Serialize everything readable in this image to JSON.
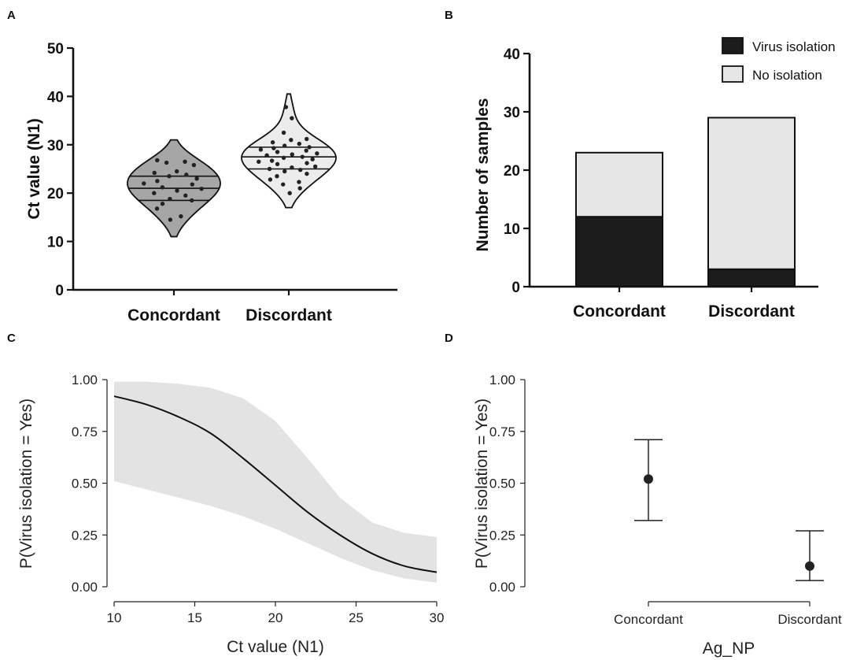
{
  "panels": {
    "a": "A",
    "b": "B",
    "c": "C",
    "d": "D"
  },
  "chart_data": [
    {
      "panel": "A",
      "type": "violin",
      "title": "",
      "xlabel": "",
      "ylabel": "Ct value (N1)",
      "ylim": [
        0,
        50
      ],
      "yticks": [
        0,
        10,
        20,
        30,
        40,
        50
      ],
      "categories": [
        "Concordant",
        "Discordant"
      ],
      "quartiles": [
        {
          "q1": 18.5,
          "median": 21,
          "q3": 23.5
        },
        {
          "q1": 25,
          "median": 27.5,
          "q3": 29.5
        }
      ],
      "range": [
        {
          "min": 11,
          "max": 31
        },
        {
          "min": 17,
          "max": 40.5
        }
      ],
      "points": [
        [
          26.8,
          26.5,
          26.3,
          25.8,
          24.5,
          24.2,
          23.8,
          23.5,
          23.0,
          22.5,
          22.0,
          21.8,
          21.2,
          20.9,
          20.5,
          20.0,
          19.5,
          18.8,
          18.5,
          17.8,
          16.8,
          15.2,
          14.5
        ],
        [
          37.8,
          35.5,
          32.5,
          31.2,
          31.0,
          30.5,
          30.2,
          29.8,
          29.5,
          29.3,
          29.0,
          28.8,
          28.5,
          28.2,
          28.0,
          27.8,
          27.5,
          27.3,
          27.0,
          26.7,
          26.5,
          26.2,
          26.0,
          25.5,
          25.3,
          25.0,
          24.8,
          24.5,
          24.0,
          23.5,
          22.8,
          22.3,
          21.8,
          21.0,
          20.0
        ]
      ]
    },
    {
      "panel": "B",
      "type": "stacked-bar",
      "title": "",
      "xlabel": "",
      "ylabel": "Number of samples",
      "ylim": [
        0,
        40
      ],
      "yticks": [
        0,
        10,
        20,
        30,
        40
      ],
      "categories": [
        "Concordant",
        "Discordant"
      ],
      "series": [
        {
          "name": "Virus isolation",
          "values": [
            12,
            3
          ],
          "color": "#1c1c1c"
        },
        {
          "name": "No isolation",
          "values": [
            11,
            26
          ],
          "color": "#e6e6e6"
        }
      ],
      "legend": "top-right"
    },
    {
      "panel": "C",
      "type": "line",
      "title": "",
      "xlabel": "Ct value (N1)",
      "ylabel": "P(Virus isolation = Yes)",
      "xlim": [
        10,
        30
      ],
      "ylim": [
        0,
        1
      ],
      "xticks": [
        10,
        15,
        20,
        25,
        30
      ],
      "yticks": [
        0.0,
        0.25,
        0.5,
        0.75,
        1.0
      ],
      "ytick_labels": [
        "0.00",
        "0.25",
        "0.50",
        "0.75",
        "1.00"
      ],
      "x": [
        10,
        12,
        14,
        16,
        18,
        20,
        22,
        24,
        26,
        28,
        30
      ],
      "y": [
        0.92,
        0.88,
        0.82,
        0.74,
        0.62,
        0.49,
        0.36,
        0.25,
        0.16,
        0.1,
        0.07
      ],
      "ci_lower": [
        0.51,
        0.47,
        0.43,
        0.39,
        0.34,
        0.28,
        0.21,
        0.14,
        0.08,
        0.04,
        0.02
      ],
      "ci_upper": [
        0.99,
        0.99,
        0.98,
        0.96,
        0.91,
        0.8,
        0.62,
        0.43,
        0.31,
        0.26,
        0.24
      ]
    },
    {
      "panel": "D",
      "type": "errorbar",
      "title": "",
      "xlabel": "Ag_NP",
      "ylabel": "P(Virus isolation = Yes)",
      "ylim": [
        0,
        1
      ],
      "yticks": [
        0.0,
        0.25,
        0.5,
        0.75,
        1.0
      ],
      "ytick_labels": [
        "0.00",
        "0.25",
        "0.50",
        "0.75",
        "1.00"
      ],
      "categories": [
        "Concordant",
        "Discordant"
      ],
      "estimates": [
        0.52,
        0.1
      ],
      "lower": [
        0.32,
        0.03
      ],
      "upper": [
        0.71,
        0.27
      ]
    }
  ]
}
